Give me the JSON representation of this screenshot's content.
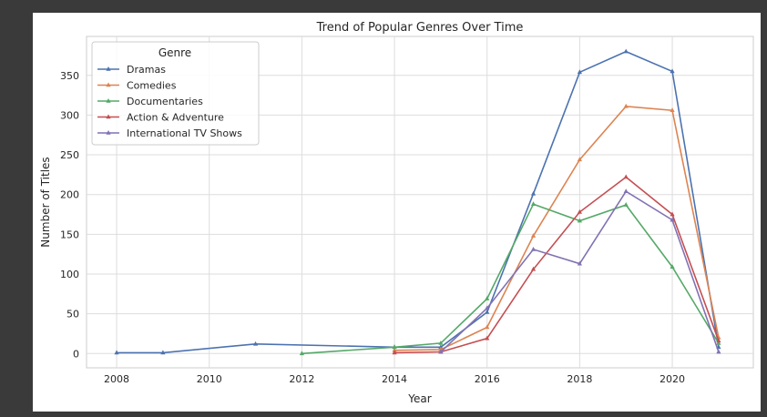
{
  "chart_data": {
    "type": "line",
    "title": "Trend of Popular Genres Over Time",
    "xlabel": "Year",
    "ylabel": "Number of Titles",
    "xlim": [
      2007.35,
      2021.75
    ],
    "ylim": [
      -18,
      399
    ],
    "x_ticks": [
      2008,
      2010,
      2012,
      2014,
      2016,
      2018,
      2020
    ],
    "y_ticks": [
      0,
      50,
      100,
      150,
      200,
      250,
      300,
      350
    ],
    "grid": true,
    "legend": {
      "title": "Genre",
      "placement": "top-left"
    },
    "series": [
      {
        "name": "Dramas",
        "color": "#4c72b0",
        "points": [
          [
            2008,
            1
          ],
          [
            2009,
            1
          ],
          [
            2011,
            12
          ],
          [
            2014,
            8
          ],
          [
            2015,
            8
          ],
          [
            2016,
            52
          ],
          [
            2017,
            201
          ],
          [
            2018,
            354
          ],
          [
            2019,
            380
          ],
          [
            2020,
            355
          ],
          [
            2021,
            8
          ]
        ]
      },
      {
        "name": "Comedies",
        "color": "#dd8452",
        "points": [
          [
            2014,
            4
          ],
          [
            2015,
            5
          ],
          [
            2016,
            33
          ],
          [
            2017,
            148
          ],
          [
            2018,
            244
          ],
          [
            2019,
            311
          ],
          [
            2020,
            306
          ],
          [
            2021,
            20
          ]
        ]
      },
      {
        "name": "Documentaries",
        "color": "#55a868",
        "points": [
          [
            2012,
            0
          ],
          [
            2014,
            8
          ],
          [
            2015,
            13
          ],
          [
            2016,
            69
          ],
          [
            2017,
            188
          ],
          [
            2018,
            167
          ],
          [
            2019,
            187
          ],
          [
            2020,
            109
          ],
          [
            2021,
            13
          ]
        ]
      },
      {
        "name": "Action & Adventure",
        "color": "#c44e52",
        "points": [
          [
            2014,
            1
          ],
          [
            2015,
            2
          ],
          [
            2016,
            19
          ],
          [
            2017,
            106
          ],
          [
            2018,
            178
          ],
          [
            2019,
            222
          ],
          [
            2020,
            175
          ],
          [
            2021,
            16
          ]
        ]
      },
      {
        "name": "International TV Shows",
        "color": "#8172b3",
        "points": [
          [
            2015,
            2
          ],
          [
            2016,
            57
          ],
          [
            2017,
            131
          ],
          [
            2018,
            113
          ],
          [
            2019,
            204
          ],
          [
            2020,
            168
          ],
          [
            2021,
            2
          ]
        ]
      }
    ]
  }
}
